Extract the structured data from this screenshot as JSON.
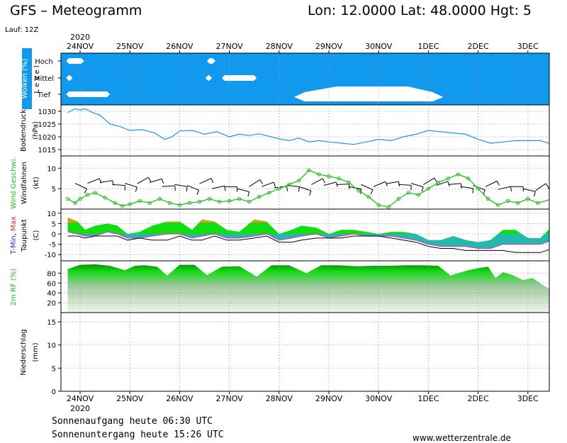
{
  "header": {
    "title": "GFS – Meteogramm",
    "coords": "Lon: 12.0000  Lat: 48.0000  Hgt: 5",
    "run": "Lauf: 12Z"
  },
  "axis": {
    "year": "2020",
    "days": [
      "24NOV",
      "25NOV",
      "26NOV",
      "27NOV",
      "28NOV",
      "29NOV",
      "30NOV",
      "1DEC",
      "2DEC",
      "3DEC"
    ]
  },
  "footer": {
    "sunrise": "Sonnenaufgang heute 06:30 UTC",
    "sunset": "Sonnenuntergang heute 15:26 UTC",
    "site": "www.wetterzentrale.de"
  },
  "colors": {
    "cloud_bg": "#1199ee",
    "cloud": "#ffffff",
    "pressure": "#1a99dd",
    "wind": "#22bb22",
    "tmax_red": "#ee2222",
    "tmin_blue": "#2233cc",
    "green": "#11dd11",
    "dark_green": "#08a808",
    "gold": "#d8a010",
    "teal": "#22bbaa",
    "magenta": "#cc44cc"
  },
  "chart_data": [
    {
      "type": "area",
      "id": "clouds",
      "ylabel_colored": "Wolken (%)",
      "ylabel_plain": "L e v e l",
      "levels": [
        "Hoch",
        "Mittel",
        "Tief"
      ],
      "x_unit": "days since 24NOV 00UTC",
      "segments": [
        {
          "level": "Hoch",
          "x": [
            -0.28,
            0.08
          ],
          "cover": "partial"
        },
        {
          "level": "Hoch",
          "x": [
            2.55,
            2.72
          ],
          "cover": "partial"
        },
        {
          "level": "Mittel",
          "x": [
            2.52,
            2.65
          ],
          "cover": "partial"
        },
        {
          "level": "Mittel",
          "x": [
            2.85,
            3.55
          ],
          "cover": "partial"
        },
        {
          "level": "Mittel",
          "x": [
            -0.28,
            -0.15
          ],
          "cover": "partial"
        },
        {
          "level": "Tief",
          "x": [
            -0.28,
            0.6
          ],
          "cover": "partial"
        },
        {
          "level": "Tief",
          "x": [
            4.3,
            7.3
          ],
          "cover": "high"
        }
      ]
    },
    {
      "type": "line",
      "id": "pressure",
      "ylabel": "Bodendruck (hPa)",
      "yticks": [
        1015,
        1020,
        1025,
        1030
      ],
      "ylim": [
        1012.5,
        1032.5
      ],
      "x": [
        -0.25,
        -0.1,
        0,
        0.1,
        0.25,
        0.4,
        0.6,
        0.8,
        1.0,
        1.25,
        1.5,
        1.7,
        1.85,
        2.0,
        2.25,
        2.5,
        2.75,
        3.0,
        3.2,
        3.4,
        3.6,
        3.8,
        4.0,
        4.2,
        4.4,
        4.6,
        4.8,
        5.0,
        5.25,
        5.5,
        5.75,
        6.0,
        6.25,
        6.5,
        6.75,
        7.0,
        7.25,
        7.5,
        7.75,
        8.0,
        8.25,
        8.5,
        8.75,
        9.0,
        9.25,
        9.5
      ],
      "values": [
        1029.5,
        1031.0,
        1030.5,
        1031.0,
        1029.5,
        1028.5,
        1025.0,
        1024.0,
        1022.5,
        1022.8,
        1021.5,
        1019.0,
        1020.0,
        1022.3,
        1022.5,
        1021.0,
        1022.0,
        1020.0,
        1021.0,
        1020.5,
        1021.2,
        1020.2,
        1019.2,
        1018.5,
        1019.5,
        1018.0,
        1018.5,
        1018.0,
        1017.5,
        1017.0,
        1018.0,
        1019.0,
        1018.5,
        1020.0,
        1021.0,
        1022.5,
        1022.0,
        1021.5,
        1021.0,
        1019.0,
        1017.5,
        1018.0,
        1018.5,
        1018.5,
        1018.5,
        1017.0
      ]
    },
    {
      "type": "line",
      "id": "wind",
      "ylabel_colored": "Wind Geschwi.",
      "ylabel_plain": "Windfahnen (kt)",
      "yticks": [
        5,
        10
      ],
      "ylim": [
        0,
        13
      ],
      "x": [
        -0.25,
        -0.1,
        0,
        0.15,
        0.3,
        0.5,
        0.7,
        0.85,
        1.0,
        1.2,
        1.4,
        1.6,
        1.8,
        2.0,
        2.2,
        2.4,
        2.6,
        2.8,
        3.0,
        3.2,
        3.4,
        3.6,
        3.8,
        4.0,
        4.2,
        4.4,
        4.6,
        4.8,
        5.0,
        5.2,
        5.4,
        5.6,
        5.8,
        6.0,
        6.2,
        6.4,
        6.6,
        6.8,
        7.0,
        7.2,
        7.4,
        7.6,
        7.8,
        8.0,
        8.2,
        8.4,
        8.6,
        8.8,
        9.0,
        9.2,
        9.5
      ],
      "values": [
        2.5,
        1.5,
        2.5,
        3.5,
        4.0,
        2.8,
        1.5,
        0.8,
        1.2,
        2.0,
        1.5,
        2.5,
        1.5,
        1.0,
        1.5,
        1.8,
        2.5,
        1.8,
        2.0,
        2.5,
        1.8,
        3.0,
        4.0,
        5.0,
        6.0,
        7.0,
        9.5,
        8.5,
        8.0,
        7.5,
        6.5,
        4.5,
        3.0,
        1.0,
        0.5,
        2.5,
        4.0,
        3.5,
        5.0,
        6.5,
        7.5,
        8.5,
        7.5,
        5.0,
        2.5,
        1.0,
        2.0,
        1.5,
        2.5,
        1.5,
        2.5
      ],
      "barbs": [
        {
          "x": -0.1,
          "y": 6.3
        },
        {
          "x": 0.15,
          "y": 6.3
        },
        {
          "x": 0.4,
          "y": 6.5
        },
        {
          "x": 0.65,
          "y": 6.0
        },
        {
          "x": 0.9,
          "y": 6.3
        },
        {
          "x": 1.15,
          "y": 6.2
        },
        {
          "x": 1.4,
          "y": 6.5
        },
        {
          "x": 1.65,
          "y": 5.5
        },
        {
          "x": 1.9,
          "y": 6.0
        },
        {
          "x": 2.15,
          "y": 5.8
        },
        {
          "x": 2.4,
          "y": 6.2
        },
        {
          "x": 2.65,
          "y": 5.0
        },
        {
          "x": 2.9,
          "y": 5.5
        },
        {
          "x": 3.15,
          "y": 5.0
        },
        {
          "x": 3.4,
          "y": 5.5
        },
        {
          "x": 3.65,
          "y": 5.5
        },
        {
          "x": 3.9,
          "y": 5.2
        },
        {
          "x": 4.15,
          "y": 5.8
        },
        {
          "x": 4.4,
          "y": 5.5
        },
        {
          "x": 4.65,
          "y": 6.0
        },
        {
          "x": 4.9,
          "y": 5.8
        },
        {
          "x": 5.15,
          "y": 6.0
        },
        {
          "x": 5.4,
          "y": 5.5
        },
        {
          "x": 5.65,
          "y": 6.0
        },
        {
          "x": 5.9,
          "y": 5.5
        },
        {
          "x": 6.15,
          "y": 6.2
        },
        {
          "x": 6.4,
          "y": 6.0
        },
        {
          "x": 6.65,
          "y": 6.3
        },
        {
          "x": 6.9,
          "y": 6.0
        },
        {
          "x": 7.15,
          "y": 5.8
        },
        {
          "x": 7.4,
          "y": 6.0
        },
        {
          "x": 7.65,
          "y": 5.5
        },
        {
          "x": 7.9,
          "y": 5.8
        },
        {
          "x": 8.15,
          "y": 5.5
        },
        {
          "x": 8.4,
          "y": 4.8
        },
        {
          "x": 8.65,
          "y": 5.5
        },
        {
          "x": 8.9,
          "y": 5.0
        },
        {
          "x": 9.15,
          "y": 4.5
        },
        {
          "x": 9.4,
          "y": 5.0
        }
      ]
    },
    {
      "type": "area",
      "id": "temperature",
      "ylabel_parts": [
        "T-Min,",
        "Max"
      ],
      "ylabel_plain": "Taupunkt (C)",
      "yticks": [
        -10,
        -5,
        0,
        5,
        10
      ],
      "ylim": [
        -13,
        12
      ],
      "x": [
        -0.25,
        -0.05,
        0.1,
        0.3,
        0.55,
        0.75,
        0.95,
        1.2,
        1.45,
        1.75,
        2.0,
        2.25,
        2.45,
        2.7,
        2.95,
        3.2,
        3.5,
        3.75,
        4.0,
        4.25,
        4.45,
        4.75,
        5.0,
        5.25,
        5.5,
        5.75,
        6.0,
        6.25,
        6.5,
        6.75,
        7.0,
        7.25,
        7.5,
        7.75,
        8.0,
        8.25,
        8.5,
        8.75,
        9.0,
        9.25,
        9.5
      ],
      "tmax": [
        8,
        6,
        2,
        4,
        5,
        4,
        0,
        1,
        4,
        6,
        6,
        2,
        7,
        6,
        2,
        1,
        7,
        6,
        0,
        2,
        4,
        3,
        0,
        2,
        2,
        1,
        0,
        1,
        1,
        0,
        -3,
        -3,
        -1,
        -3,
        -4,
        -3,
        2,
        2,
        -2,
        -2,
        4
      ],
      "tmin": [
        1,
        0,
        -1,
        -1,
        1,
        0,
        -2,
        -2,
        -1,
        0,
        0,
        -2,
        -1,
        0,
        -2,
        -2,
        -1,
        0,
        -3,
        -2,
        -1,
        0,
        -2,
        -1,
        0,
        -1,
        -1,
        -1,
        -2,
        -3,
        -5,
        -6,
        -6,
        -6,
        -7,
        -7,
        -5,
        -5,
        -5,
        -5,
        -3
      ],
      "dewpoint": [
        -1,
        -1,
        -2,
        -1,
        -1,
        -1,
        -3,
        -2,
        -3,
        -3,
        -1,
        -3,
        -3,
        -1,
        -3,
        -3,
        -2,
        -1,
        -4,
        -4,
        -3,
        -2,
        -2,
        -2,
        -1,
        -1,
        -1,
        -2,
        -3,
        -4,
        -6,
        -7,
        -7,
        -8,
        -8,
        -8,
        -8,
        -9,
        -9,
        -9,
        -7
      ]
    },
    {
      "type": "area",
      "id": "humidity",
      "ylabel": "2m RF (%)",
      "yticks": [
        20,
        40,
        60,
        80
      ],
      "ylim": [
        0,
        105
      ],
      "x": [
        -0.25,
        0.0,
        0.3,
        0.6,
        0.9,
        1.1,
        1.3,
        1.55,
        1.75,
        2.0,
        2.3,
        2.55,
        2.85,
        3.2,
        3.55,
        3.85,
        4.2,
        4.55,
        4.85,
        5.2,
        5.55,
        5.9,
        6.2,
        6.55,
        6.9,
        7.2,
        7.45,
        7.6,
        7.8,
        8.0,
        8.2,
        8.35,
        8.5,
        8.7,
        8.9,
        9.1,
        9.3,
        9.5
      ],
      "values": [
        88,
        97,
        98,
        95,
        86,
        95,
        96,
        93,
        75,
        97,
        97,
        76,
        93,
        94,
        73,
        96,
        96,
        80,
        96,
        96,
        94,
        95,
        95,
        96,
        96,
        95,
        75,
        80,
        86,
        90,
        93,
        70,
        82,
        76,
        66,
        70,
        56,
        44
      ]
    },
    {
      "type": "bar",
      "id": "precipitation",
      "ylabel": "Niederschlag (mm)",
      "yticks": [
        0,
        5,
        10,
        15
      ],
      "ylim": [
        0,
        17
      ],
      "values": []
    }
  ]
}
